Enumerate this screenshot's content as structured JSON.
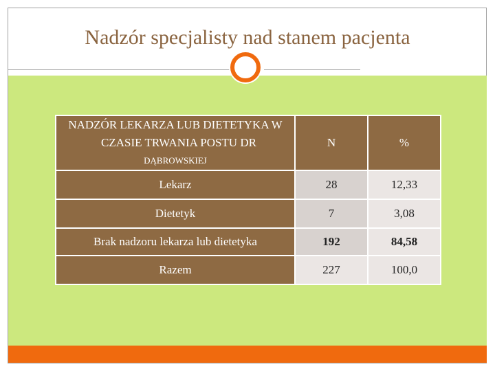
{
  "slide": {
    "title": "Nadzór specjalisty nad stanem pacjenta"
  },
  "table": {
    "header": {
      "label_line1": "Nadzór lekarza lub dietetyka w",
      "label_line2": "czasie trwania postu dr",
      "label_line3": "Dąbrowskiej",
      "col_n": "N",
      "col_pct": "%"
    },
    "rows": [
      {
        "label": "Lekarz",
        "n": "28",
        "pct": "12,33"
      },
      {
        "label": "Dietetyk",
        "n": "7",
        "pct": "3,08"
      },
      {
        "label": "Brak nadzoru lekarza lub dietetyka",
        "n": "192",
        "pct": "84,58"
      },
      {
        "label": "Razem",
        "n": "227",
        "pct": "100,0"
      }
    ]
  },
  "colors": {
    "title": "#8a6440",
    "header_brown": "#8e6a43",
    "panel_green": "#cce87e",
    "accent_orange": "#f06a0e"
  }
}
